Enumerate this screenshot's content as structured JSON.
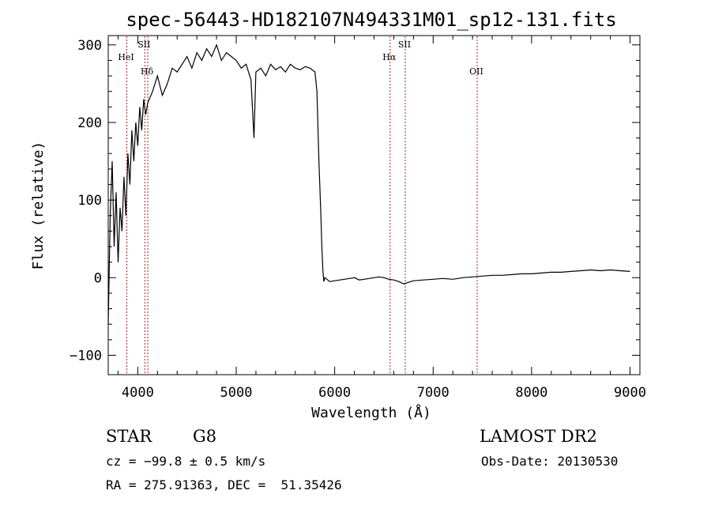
{
  "chart_data": {
    "type": "line",
    "title": "spec-56443-HD182107N494331M01_sp12-131.fits",
    "xlabel": "Wavelength (Å)",
    "ylabel": "Flux (relative)",
    "xlim": [
      3700,
      9100
    ],
    "ylim": [
      -125,
      312
    ],
    "xticks": [
      4000,
      5000,
      6000,
      7000,
      8000,
      9000
    ],
    "yticks": [
      -100,
      0,
      100,
      200,
      300
    ],
    "grid": false,
    "series": [
      {
        "x": [
          3700,
          3720,
          3740,
          3760,
          3780,
          3800,
          3820,
          3840,
          3860,
          3880,
          3900,
          3920,
          3940,
          3960,
          3980,
          4000,
          4020,
          4040,
          4060,
          4080,
          4100,
          4150,
          4200,
          4250,
          4300,
          4350,
          4400,
          4450,
          4500,
          4550,
          4600,
          4650,
          4700,
          4750,
          4800,
          4850,
          4900,
          4950,
          5000,
          5050,
          5100,
          5150,
          5180,
          5200,
          5250,
          5300,
          5350,
          5400,
          5450,
          5500,
          5550,
          5600,
          5650,
          5700,
          5750,
          5800,
          5820,
          5840,
          5860,
          5870,
          5880,
          5890,
          5900,
          5920,
          5950,
          6000,
          6050,
          6100,
          6150,
          6200,
          6250,
          6300,
          6350,
          6400,
          6450,
          6500,
          6550,
          6600,
          6650,
          6700,
          6750,
          6800,
          6900,
          7000,
          7100,
          7200,
          7300,
          7400,
          7500,
          7600,
          7700,
          7800,
          7900,
          8000,
          8100,
          8200,
          8300,
          8400,
          8500,
          8600,
          8700,
          8800,
          8900,
          9000
        ],
        "y": [
          -60,
          80,
          150,
          40,
          110,
          20,
          90,
          60,
          130,
          80,
          160,
          120,
          190,
          150,
          200,
          170,
          220,
          190,
          230,
          210,
          225,
          240,
          260,
          235,
          250,
          270,
          265,
          275,
          285,
          270,
          290,
          280,
          295,
          285,
          300,
          280,
          290,
          285,
          280,
          270,
          275,
          255,
          180,
          265,
          270,
          260,
          275,
          268,
          272,
          265,
          275,
          270,
          268,
          272,
          270,
          265,
          240,
          150,
          80,
          40,
          10,
          -5,
          0,
          -2,
          -5,
          -4,
          -3,
          -2,
          -1,
          0,
          -3,
          -2,
          -1,
          0,
          1,
          0,
          -2,
          -3,
          -5,
          -8,
          -6,
          -4,
          -3,
          -2,
          -1,
          -2,
          0,
          1,
          2,
          3,
          3,
          4,
          5,
          5,
          6,
          7,
          7,
          8,
          9,
          10,
          9,
          10,
          9,
          8
        ]
      }
    ],
    "lines": [
      {
        "label": "HeI",
        "x": 3889,
        "color": "#b22222"
      },
      {
        "label": "SII",
        "x": 4072,
        "color": "#b22222"
      },
      {
        "label": "Hδ",
        "x": 4102,
        "color": "#b22222"
      },
      {
        "label": "Hα",
        "x": 6563,
        "color": "#b22222"
      },
      {
        "label": "SII",
        "x": 6717,
        "color": "#b22222"
      },
      {
        "label": "OII",
        "x": 7447,
        "color": "#b22222"
      }
    ]
  },
  "info": {
    "class": "STAR",
    "subclass": "G8",
    "survey": "LAMOST DR2",
    "cz": "cz = −99.8 ± 0.5 km/s",
    "obsdate": "Obs-Date: 20130530",
    "coords": "RA = 275.91363, DEC =  51.35426"
  }
}
